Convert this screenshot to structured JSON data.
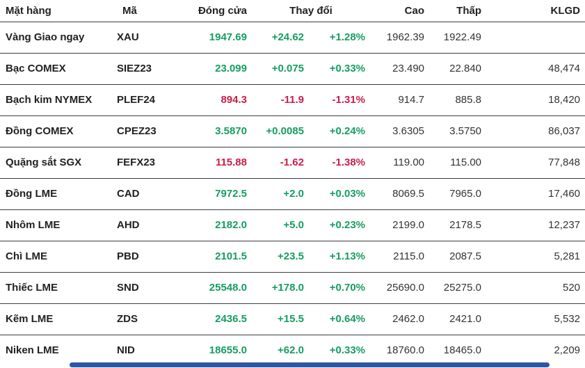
{
  "colors": {
    "up": "#169d61",
    "down": "#c81e4a",
    "header_text": "#212121",
    "value_text": "#333333",
    "separator": "#3c3c3c",
    "scrollbar": "#2f55a4"
  },
  "table": {
    "headers": {
      "name": "Mặt hàng",
      "code": "Mã",
      "close": "Đóng cửa",
      "change": "Thay đổi",
      "high": "Cao",
      "low": "Thấp",
      "volume": "KLGD"
    },
    "rows": [
      {
        "name": "Vàng Giao ngay",
        "code": "XAU",
        "close": "1947.69",
        "change": "+24.62",
        "change_pct": "+1.28%",
        "high": "1962.39",
        "low": "1922.49",
        "volume": "",
        "direction": "up"
      },
      {
        "name": "Bạc COMEX",
        "code": "SIEZ23",
        "close": "23.099",
        "change": "+0.075",
        "change_pct": "+0.33%",
        "high": "23.490",
        "low": "22.840",
        "volume": "48,474",
        "direction": "up"
      },
      {
        "name": "Bạch kim NYMEX",
        "code": "PLEF24",
        "close": "894.3",
        "change": "-11.9",
        "change_pct": "-1.31%",
        "high": "914.7",
        "low": "885.8",
        "volume": "18,420",
        "direction": "down"
      },
      {
        "name": "Đồng COMEX",
        "code": "CPEZ23",
        "close": "3.5870",
        "change": "+0.0085",
        "change_pct": "+0.24%",
        "high": "3.6305",
        "low": "3.5750",
        "volume": "86,037",
        "direction": "up"
      },
      {
        "name": "Quặng sắt SGX",
        "code": "FEFX23",
        "close": "115.88",
        "change": "-1.62",
        "change_pct": "-1.38%",
        "high": "119.00",
        "low": "115.00",
        "volume": "77,848",
        "direction": "down"
      },
      {
        "name": "Đồng LME",
        "code": "CAD",
        "close": "7972.5",
        "change": "+2.0",
        "change_pct": "+0.03%",
        "high": "8069.5",
        "low": "7965.0",
        "volume": "17,460",
        "direction": "up"
      },
      {
        "name": "Nhôm LME",
        "code": "AHD",
        "close": "2182.0",
        "change": "+5.0",
        "change_pct": "+0.23%",
        "high": "2199.0",
        "low": "2178.5",
        "volume": "12,237",
        "direction": "up"
      },
      {
        "name": "Chì LME",
        "code": "PBD",
        "close": "2101.5",
        "change": "+23.5",
        "change_pct": "+1.13%",
        "high": "2115.0",
        "low": "2087.5",
        "volume": "5,281",
        "direction": "up"
      },
      {
        "name": "Thiếc LME",
        "code": "SND",
        "close": "25548.0",
        "change": "+178.0",
        "change_pct": "+0.70%",
        "high": "25690.0",
        "low": "25275.0",
        "volume": "520",
        "direction": "up"
      },
      {
        "name": "Kẽm LME",
        "code": "ZDS",
        "close": "2436.5",
        "change": "+15.5",
        "change_pct": "+0.64%",
        "high": "2462.0",
        "low": "2421.0",
        "volume": "5,532",
        "direction": "up"
      },
      {
        "name": "Niken LME",
        "code": "NID",
        "close": "18655.0",
        "change": "+62.0",
        "change_pct": "+0.33%",
        "high": "18760.0",
        "low": "18465.0",
        "volume": "2,209",
        "direction": "up"
      }
    ]
  }
}
